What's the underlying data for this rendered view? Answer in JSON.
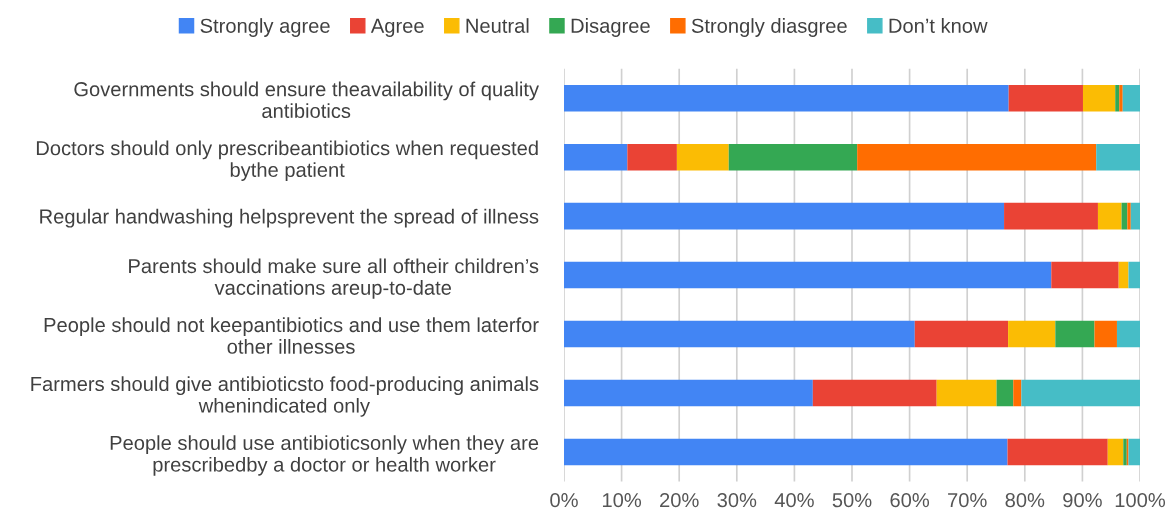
{
  "chart_data": {
    "type": "bar",
    "orientation": "horizontal",
    "stacked": true,
    "categories": [
      "Governments should ensure theavailability of quality\nantibiotics",
      "Doctors should only prescribeantibiotics when requested\nbythe patient",
      "Regular handwashing helpsprevent the spread of illness",
      "Parents should make sure all oftheir children’s\nvaccinations areup-to-date",
      "People should not keepantibiotics and use them laterfor\nother illnesses",
      "Farmers should give antibioticsto food-producing animals\nwhenindicated only",
      "People should use antibioticsonly when they are\nprescribedby a doctor or health worker"
    ],
    "series": [
      {
        "name": "Strongly agree",
        "color": "#4285f4",
        "values": [
          77.2,
          11.0,
          76.4,
          84.6,
          60.9,
          43.2,
          77.0
        ]
      },
      {
        "name": "Agree",
        "color": "#ea4335",
        "values": [
          12.9,
          8.6,
          16.3,
          11.7,
          16.2,
          21.5,
          17.4
        ]
      },
      {
        "name": "Neutral",
        "color": "#fbbc04",
        "values": [
          5.6,
          9.0,
          4.1,
          1.7,
          8.2,
          10.4,
          2.7
        ]
      },
      {
        "name": "Disagree",
        "color": "#34a853",
        "values": [
          0.7,
          22.3,
          1.0,
          0,
          6.8,
          2.9,
          0.6
        ]
      },
      {
        "name": "Strongly diasgree",
        "color": "#ff6d01",
        "values": [
          0.6,
          41.5,
          0.6,
          0,
          3.9,
          1.4,
          0.3
        ]
      },
      {
        "name": "Don’t know",
        "color": "#46bdc6",
        "values": [
          3.0,
          7.6,
          1.6,
          2.0,
          4.0,
          20.6,
          2.0
        ]
      }
    ],
    "xlim": [
      0,
      100
    ],
    "xticks": [
      {
        "value": 0,
        "label": "0%"
      },
      {
        "value": 10,
        "label": "10%"
      },
      {
        "value": 20,
        "label": "20%"
      },
      {
        "value": 30,
        "label": "30%"
      },
      {
        "value": 40,
        "label": "40%"
      },
      {
        "value": 50,
        "label": "50%"
      },
      {
        "value": 60,
        "label": "60%"
      },
      {
        "value": 70,
        "label": "70%"
      },
      {
        "value": 80,
        "label": "80%"
      },
      {
        "value": 90,
        "label": "90%"
      },
      {
        "value": 100,
        "label": "100%"
      }
    ],
    "grid": "x",
    "legend": "top"
  }
}
